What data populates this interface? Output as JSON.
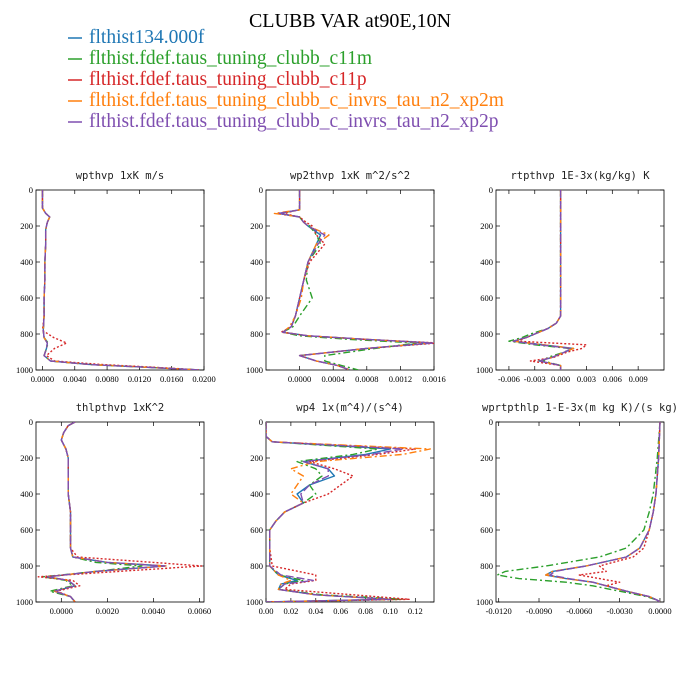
{
  "chart_data": {
    "type": "line",
    "title": "CLUBB VAR at90E,10N",
    "legend": {
      "placement": "top-left",
      "entries": [
        {
          "name": "flthist134.000f",
          "color": "#1f77b4",
          "dash": "solid"
        },
        {
          "name": "flthist.fdef.taus_tuning_clubb_c11m",
          "color": "#2ca02c",
          "dash": "dashdot"
        },
        {
          "name": "flthist.fdef.taus_tuning_clubb_c11p",
          "color": "#d62728",
          "dash": "dotted"
        },
        {
          "name": "flthist.fdef.taus_tuning_clubb_c_invrs_tau_n2_xp2m",
          "color": "#ff7f0e",
          "dash": "dashdot"
        },
        {
          "name": "flthist.fdef.taus_tuning_clubb_c_invrs_tau_n2_xp2p",
          "color": "#7f4fb0",
          "dash": "longdash"
        }
      ]
    },
    "panels": [
      {
        "title": "wpthvp  1xK m/s",
        "xlim": [
          -0.0008,
          0.02
        ],
        "xticks": [
          0.0,
          0.004,
          0.008,
          0.012,
          0.016,
          0.02
        ],
        "xtick_labels": [
          "0.0000",
          "0.0040",
          "0.0080",
          "0.0120",
          "0.0160",
          "0.0200"
        ],
        "ylim": [
          0,
          1000
        ],
        "yticks": [
          0,
          200,
          400,
          600,
          800,
          1000
        ],
        "y": [
          0,
          100,
          130,
          150,
          180,
          220,
          300,
          400,
          500,
          600,
          700,
          780,
          820,
          850,
          880,
          920,
          950,
          970,
          985,
          1000
        ],
        "series": [
          [
            0.0,
            0.0,
            0.0004,
            0.0009,
            0.0006,
            0.0004,
            0.0004,
            0.0003,
            0.0003,
            0.0002,
            0.0002,
            0.0001,
            0.0002,
            0.0006,
            0.0005,
            0.0002,
            0.001,
            0.006,
            0.013,
            0.0195
          ],
          [
            0.0,
            0.0,
            0.0004,
            0.0009,
            0.0006,
            0.0004,
            0.0004,
            0.0003,
            0.0003,
            0.0002,
            0.0002,
            0.0001,
            0.0002,
            0.0007,
            0.0005,
            0.0002,
            0.001,
            0.006,
            0.013,
            0.0195
          ],
          [
            0.0,
            0.0,
            0.0004,
            0.0009,
            0.0006,
            0.0004,
            0.0004,
            0.0003,
            0.0003,
            0.0002,
            0.0002,
            0.0,
            0.0014,
            0.003,
            0.0015,
            0.0005,
            0.0015,
            0.0075,
            0.014,
            0.0195
          ],
          [
            0.0,
            0.0,
            0.0004,
            0.0009,
            0.0006,
            0.0004,
            0.0004,
            0.0003,
            0.0003,
            0.0002,
            0.0002,
            0.0001,
            0.0002,
            0.0006,
            0.0005,
            0.0002,
            0.001,
            0.006,
            0.013,
            0.0195
          ],
          [
            0.0,
            0.0,
            0.0004,
            0.0009,
            0.0006,
            0.0004,
            0.0004,
            0.0003,
            0.0003,
            0.0002,
            0.0002,
            0.0001,
            0.0002,
            0.0006,
            0.0005,
            0.0002,
            0.001,
            0.006,
            0.013,
            0.0195
          ]
        ]
      },
      {
        "title": "wp2thvp  1xK m^2/s^2",
        "xlim": [
          -0.0004,
          0.0016
        ],
        "xticks": [
          0.0,
          0.0004,
          0.0008,
          0.0012,
          0.0016
        ],
        "xtick_labels": [
          "0.0000",
          "0.0004",
          "0.0008",
          "0.0012",
          "0.0016"
        ],
        "ylim": [
          0,
          1000
        ],
        "yticks": [
          0,
          200,
          400,
          600,
          800,
          1000
        ],
        "y": [
          0,
          90,
          110,
          130,
          150,
          180,
          200,
          250,
          300,
          400,
          500,
          600,
          700,
          760,
          790,
          810,
          830,
          850,
          880,
          920,
          950,
          975,
          1000
        ],
        "series": [
          [
            0.0,
            0.0,
            0.0,
            -0.00025,
            0.0,
            5e-05,
            0.0001,
            0.00025,
            0.0002,
            0.0001,
            5e-05,
            0.0,
            -5e-05,
            -0.0001,
            -0.0002,
            0.0001,
            0.0008,
            0.00158,
            0.0008,
            0.0,
            0.0002,
            0.00045,
            0.0006
          ],
          [
            0.0,
            0.0,
            0.0,
            -0.00025,
            0.0,
            5e-05,
            0.00012,
            0.0002,
            0.00025,
            0.0001,
            8e-05,
            0.00015,
            0.0,
            -8e-05,
            -0.0002,
            0.0,
            0.0006,
            0.0014,
            0.0009,
            0.0003,
            0.0003,
            0.0005,
            0.0007
          ],
          [
            0.0,
            0.0,
            0.0,
            -0.0002,
            0.0,
            8e-05,
            0.00015,
            0.0002,
            0.0003,
            0.00012,
            5e-05,
            0.0,
            -5e-05,
            -0.0001,
            -0.00022,
            0.0001,
            0.0008,
            0.00165,
            0.0008,
            0.0,
            0.0002,
            0.00045,
            0.0006
          ],
          [
            0.0,
            0.0,
            0.0,
            -0.0003,
            0.0,
            5e-05,
            0.0001,
            0.00035,
            0.0002,
            0.0001,
            5e-05,
            2e-05,
            -5e-05,
            -0.00012,
            -0.0002,
            0.0001,
            0.0008,
            0.00155,
            0.0008,
            0.0,
            0.0002,
            0.00045,
            0.0006
          ],
          [
            0.0,
            0.0,
            0.0,
            -0.00025,
            0.0,
            5e-05,
            0.0001,
            0.0003,
            0.00022,
            0.0001,
            5e-05,
            0.0,
            -5e-05,
            -0.0001,
            -0.0002,
            0.0001,
            0.0008,
            0.00158,
            0.0008,
            0.0,
            0.0002,
            0.00045,
            0.0006
          ]
        ]
      },
      {
        "title": "rtpthvp  1E-3x(kg/kg) K",
        "xlim": [
          -0.0075,
          0.012
        ],
        "xticks": [
          -0.006,
          -0.003,
          0.0,
          0.003,
          0.006,
          0.009
        ],
        "xtick_labels": [
          "-0.006",
          "-0.003",
          "0.000",
          "0.003",
          "0.006",
          "0.009"
        ],
        "ylim": [
          0,
          1000
        ],
        "yticks": [
          0,
          200,
          400,
          600,
          800,
          1000
        ],
        "y": [
          0,
          200,
          400,
          600,
          700,
          740,
          770,
          800,
          820,
          840,
          860,
          880,
          900,
          930,
          950,
          975,
          1000
        ],
        "series": [
          [
            0.0,
            0.0,
            0.0,
            0.0,
            0.0,
            -0.0005,
            -0.0015,
            -0.003,
            -0.004,
            -0.0055,
            -0.002,
            0.0015,
            0.0005,
            -0.001,
            -0.0025,
            0.0,
            0.0
          ],
          [
            0.0,
            0.0,
            0.0,
            0.0,
            0.0,
            -0.0005,
            -0.0015,
            -0.0035,
            -0.0045,
            -0.006,
            -0.003,
            0.001,
            0.0005,
            -0.0015,
            -0.002,
            0.0,
            0.0
          ],
          [
            0.0,
            0.0,
            0.0,
            0.0,
            0.0,
            -0.0005,
            -0.0015,
            -0.003,
            -0.004,
            -0.005,
            0.003,
            0.0025,
            0.0008,
            -0.0008,
            -0.0035,
            0.0,
            0.0
          ],
          [
            0.0,
            0.0,
            0.0,
            0.0,
            0.0,
            -0.0005,
            -0.0015,
            -0.003,
            -0.004,
            -0.0055,
            -0.002,
            0.0015,
            0.0005,
            -0.001,
            -0.0025,
            0.0,
            0.0
          ],
          [
            0.0,
            0.0,
            0.0,
            0.0,
            0.0,
            -0.0005,
            -0.0015,
            -0.003,
            -0.004,
            -0.0055,
            -0.0025,
            0.0012,
            0.0005,
            -0.001,
            -0.0025,
            0.0,
            0.0
          ]
        ]
      },
      {
        "title": "thlpthvp  1xK^2",
        "xlim": [
          -0.0011,
          0.0062
        ],
        "xticks": [
          0.0,
          0.002,
          0.004,
          0.006
        ],
        "xtick_labels": [
          "0.0000",
          "0.0020",
          "0.0040",
          "0.0060"
        ],
        "ylim": [
          0,
          1000
        ],
        "yticks": [
          0,
          200,
          400,
          600,
          800,
          1000
        ],
        "y": [
          0,
          20,
          60,
          100,
          150,
          200,
          300,
          400,
          500,
          600,
          700,
          750,
          780,
          800,
          830,
          860,
          880,
          910,
          940,
          970,
          1000
        ],
        "series": [
          [
            0.0006,
            0.0003,
            0.0001,
            0.0,
            0.0002,
            0.0003,
            0.0003,
            0.0003,
            0.0004,
            0.0004,
            0.0004,
            0.0005,
            0.002,
            0.0045,
            0.0015,
            -0.0006,
            0.0003,
            0.0006,
            -0.0003,
            0.0004,
            0.0006
          ],
          [
            0.0006,
            0.0003,
            0.0001,
            0.0,
            0.0002,
            0.0003,
            0.0003,
            0.0003,
            0.0004,
            0.0004,
            0.0004,
            0.0005,
            0.0015,
            0.0035,
            0.0015,
            -0.0008,
            0.0002,
            0.0005,
            -0.0005,
            0.0004,
            0.0006
          ],
          [
            0.0006,
            0.0003,
            0.0001,
            0.0,
            0.0002,
            0.0003,
            0.0003,
            0.0003,
            0.0004,
            0.0004,
            0.0004,
            0.0007,
            0.004,
            0.0061,
            0.0025,
            -0.001,
            0.0005,
            0.0008,
            -0.0002,
            0.0004,
            0.0006
          ],
          [
            0.0006,
            0.0003,
            0.0001,
            0.0,
            0.0002,
            0.0003,
            0.0003,
            0.0003,
            0.0004,
            0.0004,
            0.0004,
            0.0005,
            0.002,
            0.0046,
            0.0015,
            -0.0006,
            0.0003,
            0.0006,
            -0.0003,
            0.0004,
            0.0006
          ],
          [
            0.0006,
            0.0003,
            0.0001,
            0.0,
            0.0002,
            0.0003,
            0.0003,
            0.0003,
            0.0004,
            0.0004,
            0.0004,
            0.0005,
            0.002,
            0.0045,
            0.0015,
            -0.0006,
            0.0003,
            0.0006,
            -0.0003,
            0.0004,
            0.0006
          ]
        ]
      },
      {
        "title": "wp4  1x(m^4)/(s^4)",
        "xlim": [
          0.0,
          0.135
        ],
        "xticks": [
          0.0,
          0.02,
          0.04,
          0.06,
          0.08,
          0.1,
          0.12
        ],
        "xtick_labels": [
          "0.00",
          "0.02",
          "0.04",
          "0.06",
          "0.08",
          "0.10",
          "0.12"
        ],
        "ylim": [
          0,
          1000
        ],
        "yticks": [
          0,
          200,
          400,
          600,
          800,
          1000
        ],
        "y": [
          0,
          80,
          110,
          150,
          180,
          220,
          260,
          300,
          350,
          400,
          450,
          500,
          550,
          600,
          700,
          800,
          850,
          880,
          900,
          930,
          960,
          985,
          1000
        ],
        "series": [
          [
            0.0,
            0.0,
            0.005,
            0.1,
            0.08,
            0.03,
            0.05,
            0.055,
            0.035,
            0.025,
            0.03,
            0.015,
            0.008,
            0.003,
            0.003,
            0.003,
            0.01,
            0.025,
            0.012,
            0.01,
            0.04,
            0.1,
            0.0
          ],
          [
            0.0,
            0.0,
            0.005,
            0.09,
            0.07,
            0.025,
            0.04,
            0.045,
            0.035,
            0.04,
            0.03,
            0.015,
            0.008,
            0.003,
            0.003,
            0.003,
            0.01,
            0.03,
            0.015,
            0.01,
            0.045,
            0.11,
            0.0
          ],
          [
            0.0,
            0.0,
            0.005,
            0.12,
            0.09,
            0.035,
            0.055,
            0.07,
            0.06,
            0.05,
            0.03,
            0.015,
            0.008,
            0.003,
            0.003,
            0.005,
            0.04,
            0.04,
            0.02,
            0.015,
            0.07,
            0.115,
            0.0
          ],
          [
            0.0,
            0.0,
            0.005,
            0.132,
            0.11,
            0.04,
            0.02,
            0.03,
            0.025,
            0.02,
            0.03,
            0.015,
            0.008,
            0.003,
            0.003,
            0.003,
            0.01,
            0.02,
            0.012,
            0.01,
            0.04,
            0.1,
            0.0
          ],
          [
            0.0,
            0.0,
            0.005,
            0.11,
            0.085,
            0.03,
            0.05,
            0.05,
            0.035,
            0.028,
            0.03,
            0.015,
            0.008,
            0.003,
            0.003,
            0.003,
            0.012,
            0.038,
            0.015,
            0.01,
            0.04,
            0.1,
            0.0
          ]
        ]
      },
      {
        "title": "wprtpthlp  1-E-3x(m kg K)/(s kg)",
        "xlim": [
          -0.0122,
          0.0003
        ],
        "xticks": [
          -0.012,
          -0.009,
          -0.006,
          -0.003,
          0.0
        ],
        "xtick_labels": [
          "-0.0120",
          "-0.0090",
          "-0.0060",
          "-0.0030",
          "0.0000"
        ],
        "ylim": [
          0,
          1000
        ],
        "yticks": [
          0,
          200,
          400,
          600,
          800,
          1000
        ],
        "y": [
          0,
          200,
          400,
          500,
          600,
          700,
          750,
          800,
          830,
          850,
          870,
          890,
          910,
          940,
          970,
          990,
          1000
        ],
        "series": [
          [
            0.0,
            -0.0001,
            -0.0003,
            -0.0005,
            -0.0008,
            -0.0015,
            -0.0025,
            -0.0055,
            -0.008,
            -0.0085,
            -0.007,
            -0.005,
            -0.004,
            -0.0025,
            -0.0008,
            -0.0002,
            0.0
          ],
          [
            0.0,
            -0.0002,
            -0.0005,
            -0.0008,
            -0.0012,
            -0.0025,
            -0.0045,
            -0.0085,
            -0.0115,
            -0.0121,
            -0.0105,
            -0.007,
            -0.005,
            -0.003,
            -0.001,
            -0.0002,
            0.0
          ],
          [
            0.0,
            -0.0001,
            -0.0003,
            -0.0005,
            -0.0008,
            -0.0012,
            -0.002,
            -0.0045,
            -0.004,
            -0.006,
            -0.0045,
            -0.003,
            -0.004,
            -0.0025,
            -0.0008,
            -0.0002,
            0.0
          ],
          [
            0.0,
            -0.0001,
            -0.0003,
            -0.0005,
            -0.0008,
            -0.0015,
            -0.0025,
            -0.0055,
            -0.008,
            -0.0085,
            -0.007,
            -0.005,
            -0.004,
            -0.0025,
            -0.0008,
            -0.0002,
            0.0
          ],
          [
            0.0,
            -0.0001,
            -0.0003,
            -0.0005,
            -0.0008,
            -0.0015,
            -0.0025,
            -0.0055,
            -0.0078,
            -0.0082,
            -0.0068,
            -0.005,
            -0.004,
            -0.0025,
            -0.0008,
            -0.0002,
            0.0
          ]
        ]
      }
    ]
  }
}
